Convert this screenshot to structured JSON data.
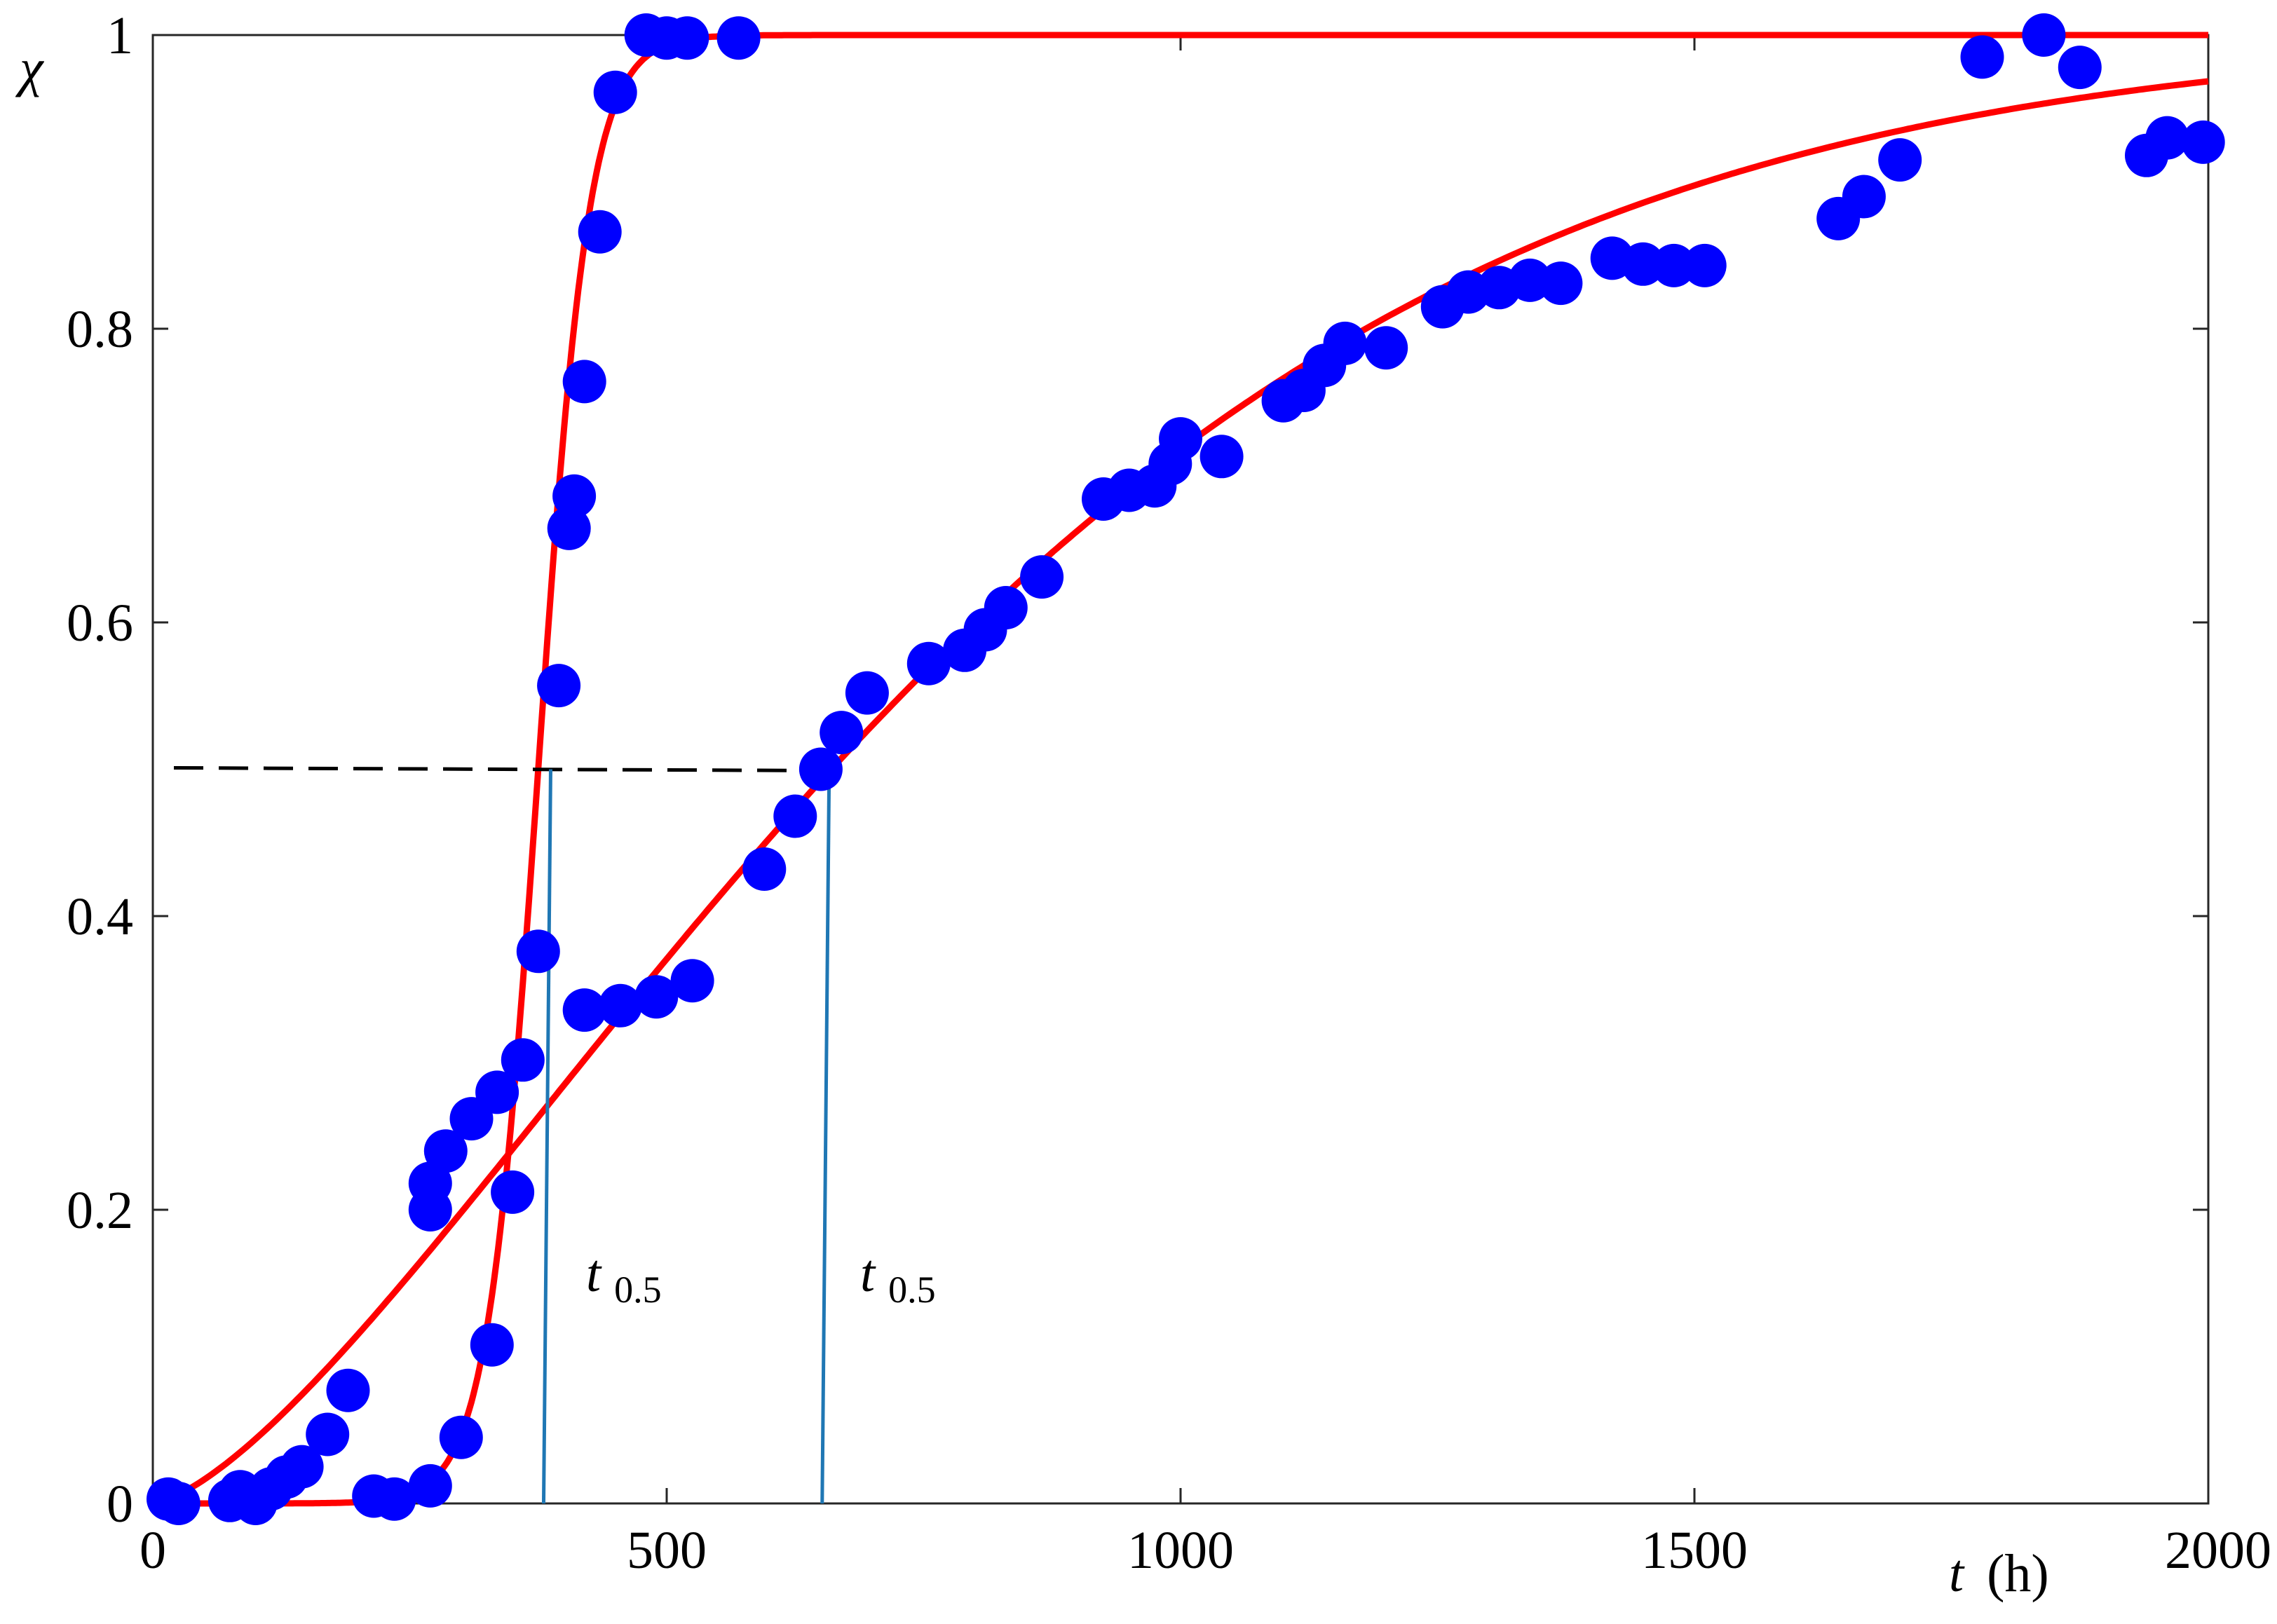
{
  "chart_data": {
    "type": "scatter",
    "xlabel": {
      "symbol": "t",
      "unit": "(h)"
    },
    "ylabel": "χ",
    "xlim": [
      0,
      2000
    ],
    "ylim": [
      0,
      1
    ],
    "xticks": [
      0,
      500,
      1000,
      1500,
      2000
    ],
    "xtick_labels": [
      "0",
      "500",
      "1000",
      "1500",
      "2000"
    ],
    "yticks": [
      0,
      0.2,
      0.4,
      0.6,
      0.8,
      1
    ],
    "ytick_labels": [
      "0",
      "0.2",
      "0.4",
      "0.6",
      "0.8",
      "1"
    ],
    "grid": false,
    "colors": {
      "points": "#0000ff",
      "fit": "#ff0000",
      "t05_line": "#1f77b4",
      "half_line": "#000000"
    },
    "series": [
      {
        "type": "scatter",
        "points": [
          [
            15,
            0.003
          ],
          [
            25,
            0
          ],
          [
            75,
            0.002
          ],
          [
            85,
            0.008
          ],
          [
            100,
            0
          ],
          [
            115,
            0.01
          ],
          [
            130,
            0.018
          ],
          [
            145,
            0.025
          ],
          [
            170,
            0.047
          ],
          [
            190,
            0.077
          ],
          [
            215,
            0.005
          ],
          [
            235,
            0.003
          ],
          [
            270,
            0.012
          ],
          [
            270,
            0.2
          ],
          [
            270,
            0.218
          ],
          [
            285,
            0.24
          ],
          [
            300,
            0.045
          ],
          [
            310,
            0.262
          ],
          [
            330,
            0.108
          ],
          [
            335,
            0.28
          ],
          [
            350,
            0.212
          ],
          [
            360,
            0.302
          ],
          [
            375,
            0.376
          ],
          [
            395,
            0.557
          ],
          [
            405,
            0.664
          ],
          [
            410,
            0.686
          ],
          [
            420,
            0.764
          ],
          [
            435,
            0.866
          ],
          [
            450,
            0.961
          ],
          [
            480,
            1.0
          ],
          [
            500,
            0.998
          ],
          [
            520,
            0.998
          ],
          [
            570,
            0.998
          ],
          [
            420,
            0.336
          ],
          [
            455,
            0.339
          ],
          [
            490,
            0.345
          ],
          [
            525,
            0.356
          ],
          [
            595,
            0.432
          ],
          [
            625,
            0.468
          ],
          [
            650,
            0.5
          ],
          [
            670,
            0.525
          ],
          [
            695,
            0.552
          ],
          [
            755,
            0.572
          ],
          [
            790,
            0.581
          ],
          [
            810,
            0.595
          ],
          [
            830,
            0.61
          ],
          [
            865,
            0.631
          ],
          [
            925,
            0.684
          ],
          [
            950,
            0.69
          ],
          [
            975,
            0.693
          ],
          [
            990,
            0.708
          ],
          [
            1000,
            0.725
          ],
          [
            1040,
            0.713
          ],
          [
            1100,
            0.751
          ],
          [
            1120,
            0.758
          ],
          [
            1140,
            0.775
          ],
          [
            1160,
            0.79
          ],
          [
            1200,
            0.787
          ],
          [
            1255,
            0.815
          ],
          [
            1280,
            0.825
          ],
          [
            1310,
            0.828
          ],
          [
            1340,
            0.833
          ],
          [
            1370,
            0.831
          ],
          [
            1420,
            0.848
          ],
          [
            1450,
            0.844
          ],
          [
            1480,
            0.843
          ],
          [
            1510,
            0.843
          ],
          [
            1640,
            0.875
          ],
          [
            1665,
            0.89
          ],
          [
            1700,
            0.915
          ],
          [
            1780,
            0.985
          ],
          [
            1840,
            1.0
          ],
          [
            1875,
            0.978
          ],
          [
            1940,
            0.918
          ],
          [
            1960,
            0.93
          ],
          [
            1995,
            0.927
          ]
        ]
      },
      {
        "type": "line",
        "model": "logistic",
        "x": [
          0,
          250,
          300,
          350,
          375,
          400,
          425,
          450,
          500,
          2000
        ],
        "y": [
          0.0,
          0.006,
          0.047,
          0.269,
          0.5,
          0.731,
          0.881,
          0.953,
          0.994,
          1.0
        ]
      },
      {
        "type": "line",
        "model": "avrami",
        "x": [
          0,
          100,
          200,
          300,
          400,
          500,
          600,
          700,
          800,
          900,
          1000,
          1200,
          1400,
          1600,
          1800,
          2000
        ],
        "y": [
          0.0,
          0.034,
          0.116,
          0.223,
          0.338,
          0.45,
          0.55,
          0.635,
          0.707,
          0.765,
          0.812,
          0.881,
          0.925,
          0.953,
          0.971,
          0.982
        ]
      }
    ],
    "half_level": 0.5,
    "t05_markers": [
      {
        "x": 383,
        "label_base": "t",
        "label_sub": "0.5"
      },
      {
        "x": 654,
        "label_base": "t",
        "label_sub": "0.5"
      }
    ]
  }
}
